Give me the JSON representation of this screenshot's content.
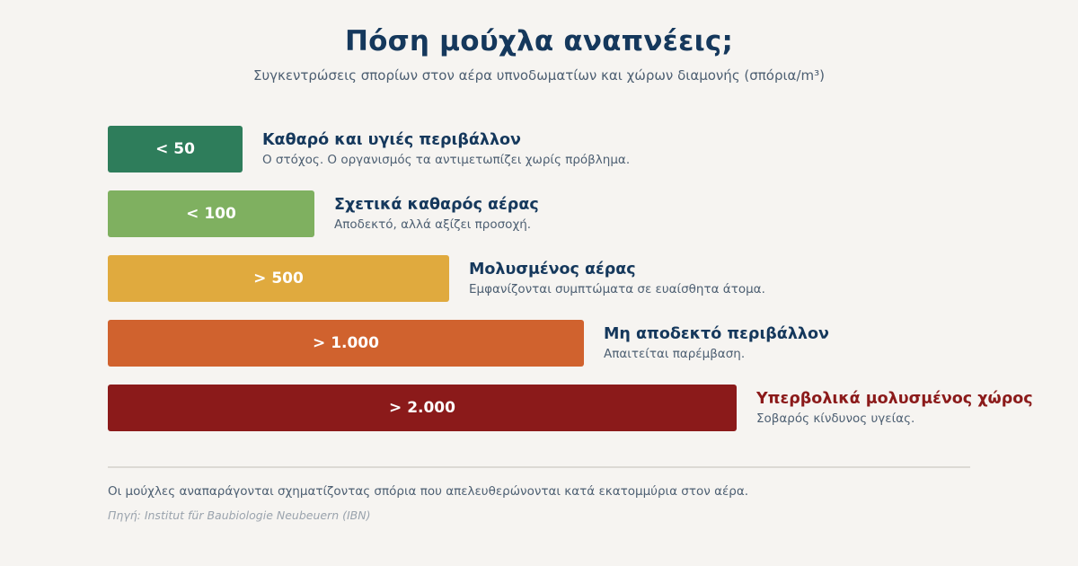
{
  "title": "Πόση μούχλα αναπνέεις;",
  "subtitle": "Συγκεντρώσεις σπορίων στον αέρα υπνοδωματίων και χώρων διαμονής (σπόρια/m³)",
  "chart_data": {
    "type": "bar",
    "orientation": "horizontal",
    "categories": [
      "< 50",
      "< 100",
      "> 500",
      "> 1.000",
      "> 2.000"
    ],
    "values": [
      50,
      100,
      500,
      1000,
      2000
    ],
    "colors": [
      "#2e7d5b",
      "#7fb060",
      "#e0aa3e",
      "#d0622e",
      "#8b1a1a"
    ],
    "descriptions": [
      {
        "title": "Καθαρό και υγιές περιβάλλον",
        "text": "Ο στόχος. Ο οργανισμός τα αντιμετωπίζει χωρίς πρόβλημα."
      },
      {
        "title": "Σχετικά καθαρός αέρας",
        "text": "Αποδεκτό, αλλά αξίζει προσοχή."
      },
      {
        "title": "Μολυσμένος αέρας",
        "text": "Εμφανίζονται συμπτώματα σε ευαίσθητα άτομα."
      },
      {
        "title": "Μη αποδεκτό περιβάλλον",
        "text": "Απαιτείται παρέμβαση."
      },
      {
        "title": "Υπερβολικά μολυσμένος χώρος",
        "text": "Σοβαρός κίνδυνος υγείας.",
        "title_color": "#8b1a1a"
      }
    ]
  },
  "footnote": "Οι μούχλες αναπαράγονται σχηματίζοντας σπόρια που απελευθερώνονται κατά εκατομμύρια στον αέρα.",
  "source": "Πηγή: Institut für Baubiologie Neubeuern (IBN)"
}
